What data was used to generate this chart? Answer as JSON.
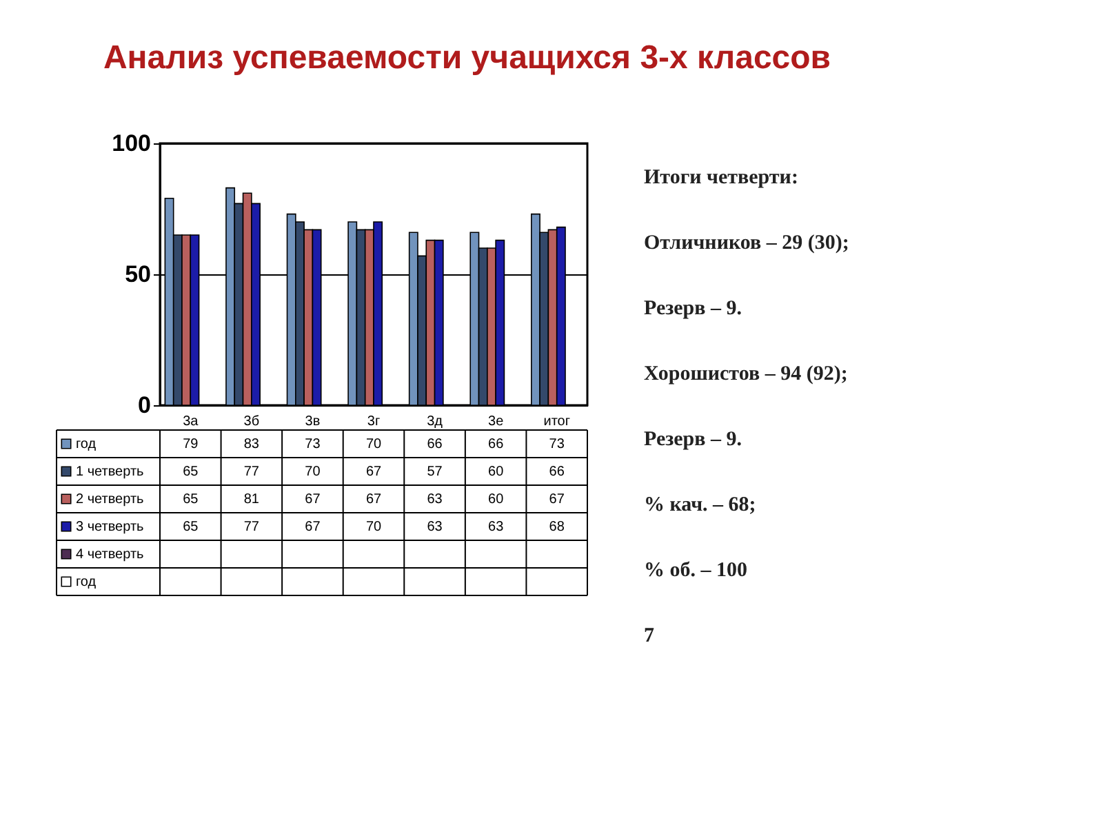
{
  "chart_data": {
    "type": "bar",
    "title": "Анализ успеваемости учащихся 3-х классов",
    "categories": [
      "3а",
      "3б",
      "3в",
      "3г",
      "3д",
      "3е",
      "итог"
    ],
    "series": [
      {
        "name": "год",
        "color": "#7193bd",
        "values": [
          79,
          83,
          73,
          70,
          66,
          66,
          73
        ]
      },
      {
        "name": "1 четверть",
        "color": "#34496b",
        "values": [
          65,
          77,
          70,
          67,
          57,
          60,
          66
        ]
      },
      {
        "name": "2 четверть",
        "color": "#b9605e",
        "values": [
          65,
          81,
          67,
          67,
          63,
          60,
          67
        ]
      },
      {
        "name": "3 четверть",
        "color": "#1c1ca8",
        "values": [
          65,
          77,
          67,
          70,
          63,
          63,
          68
        ]
      },
      {
        "name": "4 четверть",
        "color": "#4d2d52",
        "values": [
          null,
          null,
          null,
          null,
          null,
          null,
          null
        ]
      },
      {
        "name": "год",
        "color": "#ffffff",
        "values": [
          null,
          null,
          null,
          null,
          null,
          null,
          null
        ]
      }
    ],
    "ylim": [
      0,
      100
    ],
    "yticks": [
      0,
      50,
      100
    ],
    "grid": "y",
    "legend": "bottom",
    "data_labels": true,
    "annotations": [
      "Итоги четверти:",
      "Отличников – 29 (30);",
      "Резерв – 9.",
      "Хорошистов – 94 (92);",
      "Резерв – 9.",
      "% кач. – 68;",
      "% об. – 100",
      "7"
    ]
  }
}
